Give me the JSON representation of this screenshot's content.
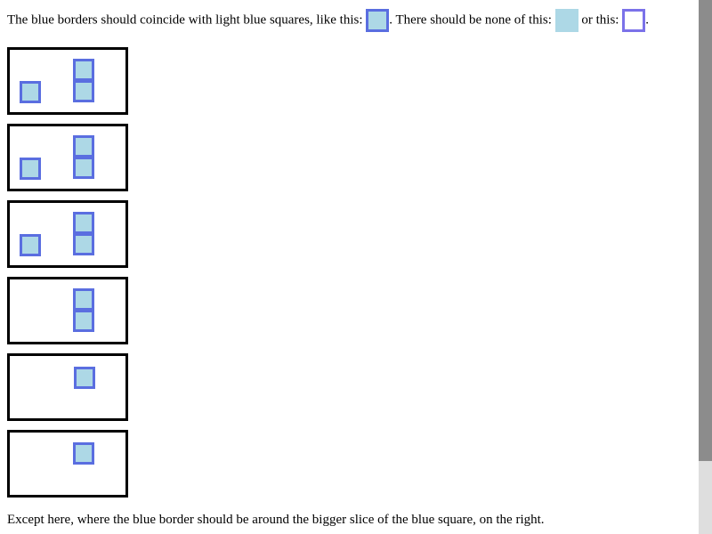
{
  "intro": {
    "part1": "The blue borders should coincide with light blue squares, like this:",
    "part2": ". There should be none of this:",
    "part3": "or this:",
    "part4": "."
  },
  "colors": {
    "light_blue": "#add8e6",
    "blue_border": "#5a6ee0",
    "purple_border": "#7b72e9",
    "box_border": "#000000"
  },
  "footer": {
    "text": "Except here, where the blue border should be around the bigger slice of the blue square, on the right."
  }
}
